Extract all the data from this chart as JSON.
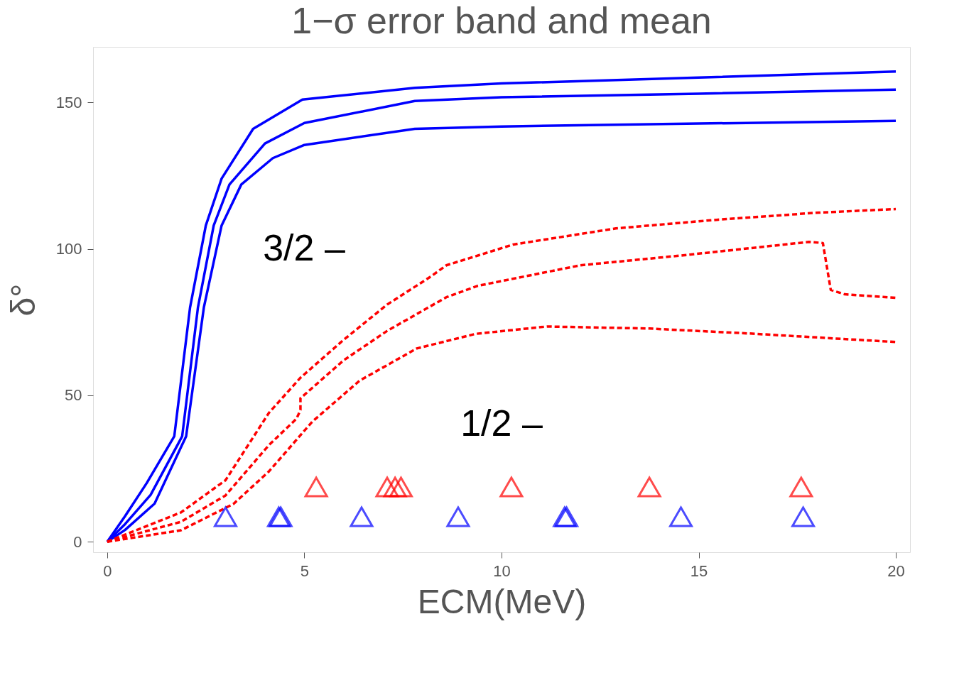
{
  "chart_data": {
    "type": "line",
    "title": "1−σ error band and mean",
    "xlabel": "ECM(MeV)",
    "ylabel": "δ°",
    "xlim": [
      -0.36,
      20.36
    ],
    "ylim": [
      -3.6,
      169
    ],
    "xticks": [
      0,
      5,
      10,
      15,
      20
    ],
    "yticks": [
      0,
      50,
      100,
      150
    ],
    "grid": false,
    "series": [
      {
        "color": "#0000ff",
        "line_style": "solid",
        "marker": "none",
        "x": [
          0,
          0.45,
          1.0,
          1.7,
          2.1,
          2.5,
          2.9,
          3.7,
          4.95,
          7.8,
          10,
          15,
          20
        ],
        "values": [
          0,
          8.7,
          20,
          36,
          80,
          108,
          124,
          141,
          151,
          155,
          156.5,
          158.5,
          160.6
        ]
      },
      {
        "color": "#0000ff",
        "line_style": "solid",
        "marker": "none",
        "x": [
          0,
          0.45,
          1.1,
          1.9,
          2.3,
          2.7,
          3.1,
          4.0,
          5.0,
          7.8,
          10,
          15,
          20
        ],
        "values": [
          0,
          6,
          16,
          36,
          80,
          108,
          122,
          136,
          143,
          150.5,
          151.8,
          153,
          154.4
        ]
      },
      {
        "color": "#0000ff",
        "line_style": "solid",
        "marker": "none",
        "x": [
          0,
          0.45,
          1.2,
          2.0,
          2.45,
          2.9,
          3.4,
          4.2,
          5.0,
          7.8,
          10,
          15,
          20
        ],
        "values": [
          0,
          4,
          13,
          36,
          80,
          108,
          122,
          131,
          135.5,
          141,
          141.8,
          142.8,
          143.7
        ]
      },
      {
        "color": "#ff0000",
        "line_style": "dashed",
        "marker": "none",
        "x": [
          0,
          1.87,
          3.0,
          4.1,
          4.9,
          6.0,
          7.1,
          8.2,
          8.6,
          10.3,
          12.9,
          15.5,
          18.05,
          20
        ],
        "values": [
          0,
          10,
          21,
          44,
          56,
          69,
          81,
          90.5,
          94.4,
          101.5,
          107,
          110,
          112.4,
          113.6
        ]
      },
      {
        "color": "#ff0000",
        "line_style": "dashed",
        "marker": "none",
        "x": [
          0,
          1.87,
          3.0,
          4.1,
          4.8,
          4.9,
          4.9,
          6.0,
          7.1,
          8.6,
          9.4,
          12.0,
          14.6,
          17.8,
          18.15,
          18.35,
          18.7,
          20
        ],
        "values": [
          0,
          6.8,
          15.8,
          33,
          42,
          45,
          49,
          62,
          72,
          83.5,
          87.4,
          94.4,
          97.8,
          102.4,
          102,
          86,
          84.5,
          83.3
        ]
      },
      {
        "color": "#ff0000",
        "line_style": "dashed",
        "marker": "none",
        "x": [
          0,
          1.87,
          3.2,
          4.1,
          5.2,
          6.4,
          7.85,
          9.35,
          11.15,
          13.75,
          16.3,
          20
        ],
        "values": [
          0,
          3.9,
          12.9,
          24,
          41,
          55,
          66,
          71,
          73.5,
          72.8,
          71.1,
          68.2
        ]
      },
      {
        "type": "scatter",
        "color": "#0000ff",
        "marker": "triangle",
        "x": [
          3.0,
          4.35,
          4.4,
          6.45,
          8.9,
          11.6,
          11.65,
          14.55,
          17.65
        ],
        "values": [
          8.5,
          8.5,
          8.5,
          8.5,
          8.5,
          8.5,
          8.5,
          8.5,
          8.5
        ]
      },
      {
        "type": "scatter",
        "color": "#ff0000",
        "marker": "triangle",
        "x": [
          5.3,
          7.1,
          7.3,
          7.45,
          10.25,
          13.75,
          17.6
        ],
        "values": [
          18.7,
          18.7,
          18.7,
          18.7,
          18.7,
          18.7,
          18.7
        ]
      }
    ],
    "annotations": [
      "3/2 –",
      "1/2 –"
    ]
  }
}
